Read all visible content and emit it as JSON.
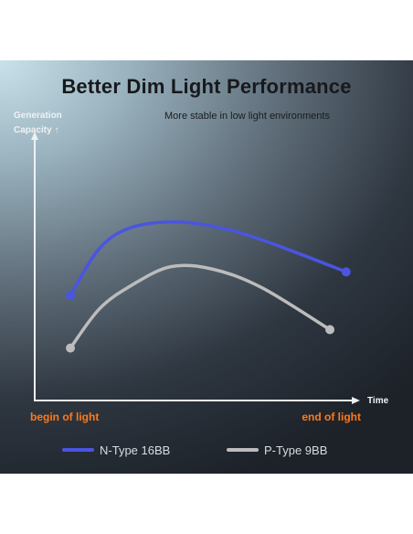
{
  "colors": {
    "n_type": "#4a55e0",
    "p_type": "#bcbcbc",
    "accent": "#ff7a1a",
    "axis": "#eef1f3"
  },
  "chart_data": {
    "type": "line",
    "title": "Better Dim Light Performance",
    "subtitle": "More stable in low light environments",
    "ylabel": "Generation Capacity ↑",
    "xlabel": "Time",
    "x_start_label": "begin of light",
    "x_end_label": "end of light",
    "x_range": [
      0,
      1
    ],
    "y_range": [
      0,
      1
    ],
    "grid": false,
    "legend_position": "bottom",
    "series": [
      {
        "name": "N-Type 16BB",
        "color": "#4a55e0",
        "x": [
          0.11,
          0.2,
          0.3,
          0.45,
          0.6,
          0.75,
          0.96
        ],
        "y": [
          0.4,
          0.58,
          0.66,
          0.68,
          0.65,
          0.59,
          0.49
        ]
      },
      {
        "name": "P-Type 9BB",
        "color": "#bcbcbc",
        "x": [
          0.11,
          0.2,
          0.3,
          0.42,
          0.55,
          0.7,
          0.91
        ],
        "y": [
          0.2,
          0.35,
          0.44,
          0.51,
          0.5,
          0.43,
          0.27
        ]
      }
    ]
  }
}
